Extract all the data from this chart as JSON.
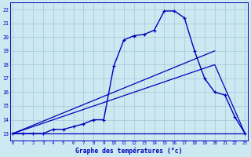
{
  "title": "Graphe des températures (°c)",
  "bg_color": "#cce8f0",
  "grid_color": "#aaccdd",
  "line_color": "#0000bb",
  "y_min": 12.5,
  "y_max": 22.5,
  "y_ticks": [
    13,
    14,
    15,
    16,
    17,
    18,
    19,
    20,
    21,
    22
  ],
  "x_ticks": [
    0,
    1,
    2,
    3,
    4,
    5,
    6,
    7,
    8,
    9,
    10,
    11,
    12,
    13,
    14,
    15,
    16,
    17,
    18,
    19,
    20,
    21,
    22,
    23
  ],
  "main_line_x": [
    0,
    1,
    2,
    3,
    4,
    5,
    6,
    7,
    8,
    9,
    10,
    11,
    12,
    13,
    14,
    15,
    16,
    17,
    18,
    19,
    20,
    21,
    22,
    23
  ],
  "main_line_y": [
    13,
    13,
    13,
    13,
    13.3,
    13.3,
    13.5,
    13.7,
    14.0,
    14.0,
    17.9,
    19.8,
    20.1,
    20.2,
    20.5,
    21.9,
    21.9,
    21.4,
    19.0,
    17.0,
    16.0,
    15.8,
    14.2,
    13.0
  ],
  "straight_line1_x": [
    0,
    23
  ],
  "straight_line1_y": [
    13,
    13
  ],
  "straight_line2_x": [
    0,
    20,
    23
  ],
  "straight_line2_y": [
    13,
    18,
    13
  ],
  "straight_line3_x": [
    0,
    20
  ],
  "straight_line3_y": [
    13,
    19
  ]
}
